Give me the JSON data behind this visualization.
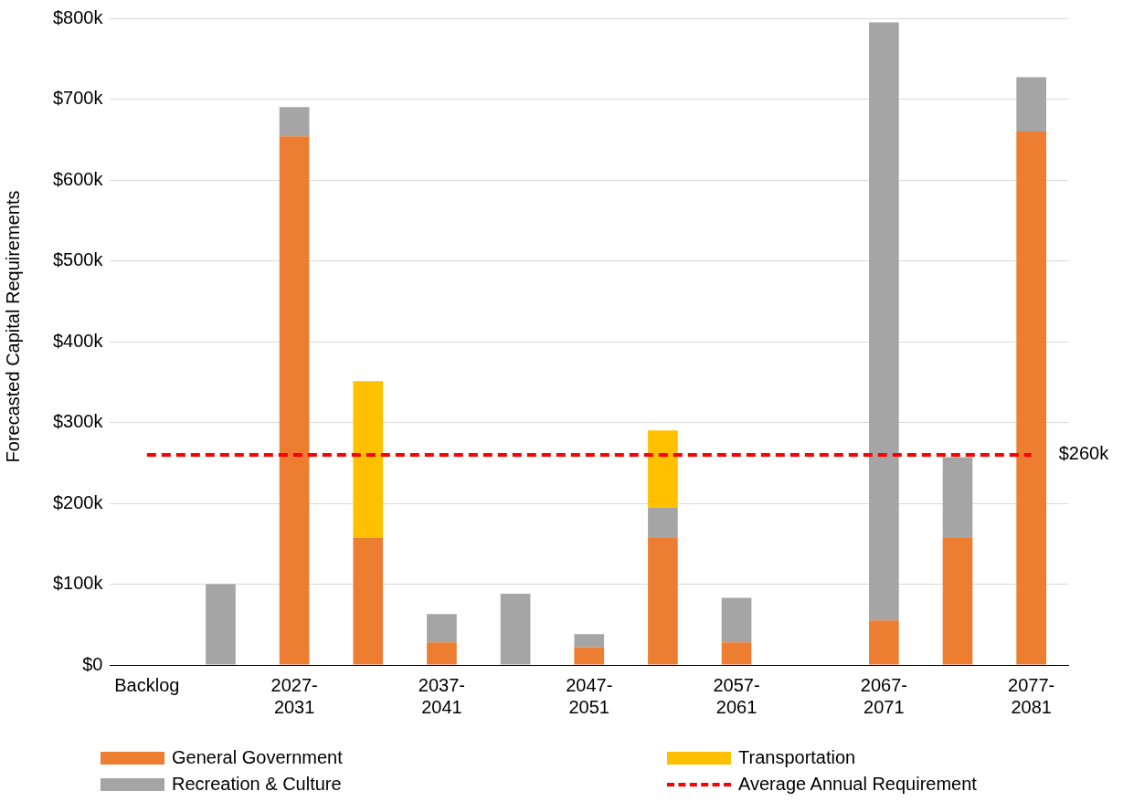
{
  "chart_data": {
    "type": "bar",
    "stacked": true,
    "ylabel": "Forecasted Capital Requirements",
    "categories": [
      "Backlog",
      null,
      "2027-\n2031",
      null,
      "2037-\n2041",
      null,
      "2047-\n2051",
      null,
      "2057-\n2061",
      null,
      "2067-\n2071",
      null,
      "2077-\n2081"
    ],
    "series": [
      {
        "name": "General Government",
        "color": "#ed7d31",
        "values": [
          null,
          null,
          654,
          157,
          28,
          null,
          22,
          157,
          28,
          null,
          55,
          157,
          660
        ]
      },
      {
        "name": "Recreation & Culture",
        "color": "#a5a5a5",
        "values": [
          null,
          100,
          36,
          null,
          35,
          88,
          16,
          38,
          55,
          null,
          740,
          100,
          67
        ]
      },
      {
        "name": "Transportation",
        "color": "#ffc000",
        "values": [
          null,
          null,
          null,
          194,
          null,
          null,
          null,
          95,
          null,
          null,
          null,
          null,
          null
        ]
      },
      {
        "name": "Average Annual Requirement",
        "type": "line",
        "color": "#ff0000",
        "line_style": "dashed",
        "marker": "none",
        "values": [
          260,
          260,
          260,
          260,
          260,
          260,
          260,
          260,
          260,
          260,
          260,
          260,
          260
        ]
      }
    ],
    "annotations": [
      {
        "text": "$260k",
        "x": "2077-\n2081",
        "y": 260
      }
    ],
    "ylim": [
      0,
      800
    ],
    "yticks": [
      {
        "value": 0,
        "label": "$0"
      },
      {
        "value": 100,
        "label": "$100k"
      },
      {
        "value": 200,
        "label": "$200k"
      },
      {
        "value": 300,
        "label": "$300k"
      },
      {
        "value": 400,
        "label": "$400k"
      },
      {
        "value": 500,
        "label": "$500k"
      },
      {
        "value": 600,
        "label": "$600k"
      },
      {
        "value": 700,
        "label": "$700k"
      },
      {
        "value": 800,
        "label": "$800k"
      }
    ],
    "grid": "y",
    "legend": "bottom"
  }
}
